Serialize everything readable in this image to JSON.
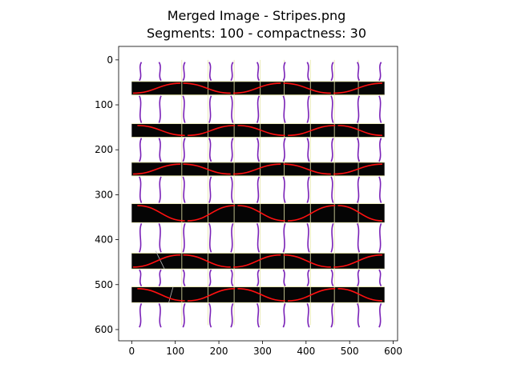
{
  "figure": {
    "title_line1": "Merged Image - Stripes.png",
    "title_line2": "Segments: 100 - compactness: 30"
  },
  "chart_data": {
    "type": "image",
    "title": "Merged Image - Stripes.png",
    "subtitle": "Segments: 100 - compactness: 30",
    "xlabel": "",
    "ylabel": "",
    "xlim": [
      -30,
      610
    ],
    "ylim": [
      625,
      -30
    ],
    "x_ticks": [
      0,
      100,
      200,
      300,
      400,
      500,
      600
    ],
    "y_ticks": [
      0,
      100,
      200,
      300,
      400,
      500,
      600
    ],
    "image_width": 580,
    "image_height": 600,
    "stripes": [
      {
        "y0": 48,
        "y1": 78
      },
      {
        "y0": 142,
        "y1": 172
      },
      {
        "y0": 228,
        "y1": 258
      },
      {
        "y0": 320,
        "y1": 362
      },
      {
        "y0": 430,
        "y1": 465
      },
      {
        "y0": 505,
        "y1": 540
      }
    ],
    "grid": false,
    "colors": {
      "stripe": "#050505",
      "background": "#ffffff",
      "boundary": "#e6e6a8",
      "red_curve": "#ff1010",
      "purple_curve": "#7a22b8",
      "axis": "#000000"
    }
  }
}
